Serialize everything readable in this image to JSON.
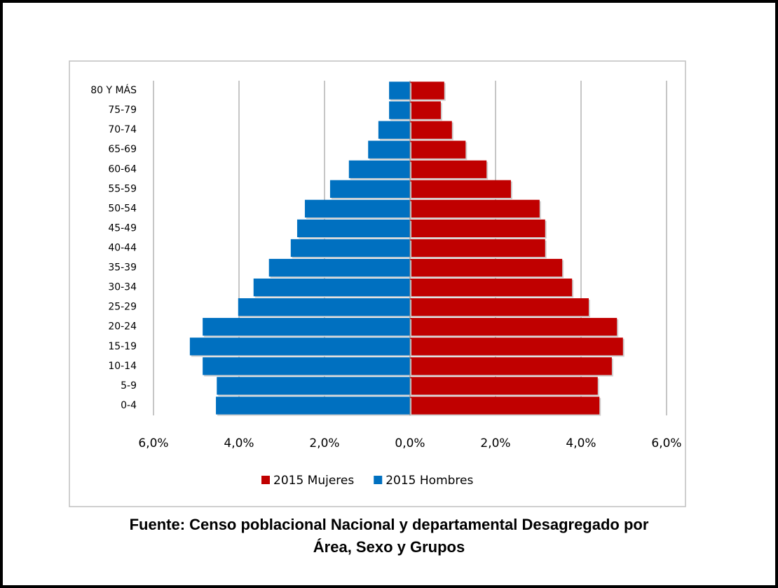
{
  "chart_data": {
    "type": "pyramid",
    "categories": [
      "80 Y MÁS",
      "75-79",
      "70-74",
      "65-69",
      "60-64",
      "55-59",
      "50-54",
      "45-49",
      "40-44",
      "35-39",
      "30-34",
      "25-29",
      "20-24",
      "15-19",
      "10-14",
      "5-9",
      "0-4"
    ],
    "series": [
      {
        "name": "2015 Mujeres",
        "color": "#c00000",
        "values": [
          0.8,
          0.72,
          0.98,
          1.3,
          1.79,
          2.36,
          3.03,
          3.16,
          3.16,
          3.56,
          3.79,
          4.18,
          4.84,
          4.98,
          4.72,
          4.39,
          4.43
        ]
      },
      {
        "name": "2015 Hombres",
        "color": "#0070c0",
        "values": [
          -0.49,
          -0.49,
          -0.74,
          -0.98,
          -1.43,
          -1.87,
          -2.46,
          -2.64,
          -2.79,
          -3.3,
          -3.66,
          -4.02,
          -4.85,
          -5.15,
          -4.85,
          -4.52,
          -4.54
        ]
      }
    ],
    "xlim": [
      -6,
      6
    ],
    "xticks": [
      {
        "value": -6,
        "label": "6,0%"
      },
      {
        "value": -4,
        "label": "4,0%"
      },
      {
        "value": -2,
        "label": "2,0%"
      },
      {
        "value": 0,
        "label": "0,0%"
      },
      {
        "value": 2,
        "label": "2,0%"
      },
      {
        "value": 4,
        "label": "4,0%"
      },
      {
        "value": 6,
        "label": "6,0%"
      }
    ],
    "grid": true,
    "legend": "bottom"
  },
  "caption": [
    "Fuente: Censo poblacional Nacional y departamental Desagregado por",
    "Área, Sexo y Grupos"
  ]
}
